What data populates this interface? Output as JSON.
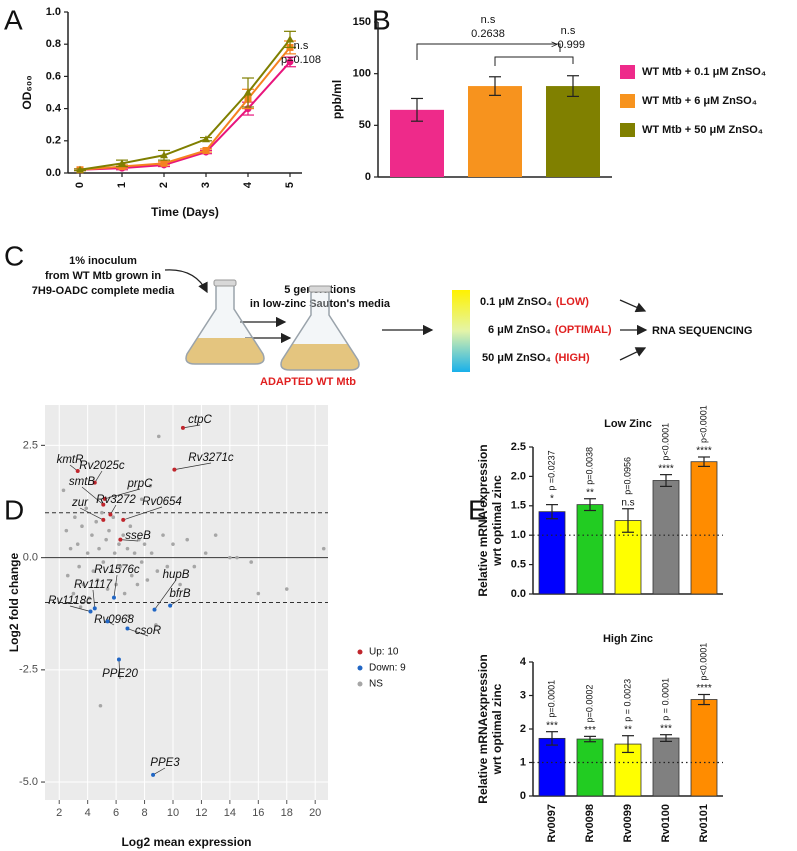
{
  "chart_data": [
    {
      "type": "line",
      "panel": "A",
      "xlabel": "Time (Days)",
      "ylabel": "OD₆₀₀",
      "categories": [
        "0",
        "1",
        "2",
        "3",
        "4",
        "5"
      ],
      "ylim": [
        0,
        1
      ],
      "yticks": [
        {
          "value": 0,
          "label": "0.0"
        },
        0.2,
        0.4,
        0.6,
        0.8,
        {
          "value": 1,
          "label": "1.0"
        }
      ],
      "series": [
        {
          "color": "#e8157c",
          "values": [
            0.02,
            0.03,
            0.05,
            0.13,
            0.4,
            0.69
          ],
          "errors": [
            0.005,
            0.01,
            0.01,
            0.01,
            0.04,
            0.03
          ]
        },
        {
          "color": "#f58220",
          "values": [
            0.02,
            0.04,
            0.06,
            0.14,
            0.46,
            0.78
          ],
          "errors": [
            0.005,
            0.01,
            0.01,
            0.01,
            0.06,
            0.04
          ]
        },
        {
          "color": "#7f7f00",
          "values": [
            0.02,
            0.06,
            0.11,
            0.21,
            0.5,
            0.83
          ],
          "errors": [
            0.005,
            0.02,
            0.03,
            0.01,
            0.09,
            0.05
          ]
        }
      ],
      "annotations": [
        "n.s",
        "p=0.108"
      ]
    },
    {
      "type": "bar",
      "panel": "B",
      "ylabel": "ppb/ml",
      "categories": [
        null
      ],
      "ylim": [
        0,
        150
      ],
      "yticks": [
        0,
        50,
        100,
        150
      ],
      "series": [
        {
          "name": "WT Mtb + 0.1 μM ZnSO₄",
          "color": "#ee2a8a",
          "values": [
            65
          ],
          "errors": [
            11
          ]
        },
        {
          "name": "WT Mtb + 6 μM ZnSO₄",
          "color": "#f7931e",
          "values": [
            88
          ],
          "errors": [
            9
          ]
        },
        {
          "name": "WT Mtb + 50 μM ZnSO₄",
          "color": "#808000",
          "values": [
            88
          ],
          "errors": [
            10
          ]
        }
      ],
      "annotations": [
        [
          "n.s",
          "0.2638"
        ],
        [
          "n.s",
          ">0.999"
        ]
      ]
    },
    {
      "type": "scatter",
      "panel": "D",
      "xlabel": "Log2 mean expression",
      "ylabel": "Log2 fold change",
      "grid": true,
      "xlim": [
        1,
        20.9
      ],
      "xticks": [
        2,
        4,
        6,
        8,
        10,
        12,
        14,
        16,
        18,
        20
      ],
      "ylim": [
        -5.4,
        3.4
      ],
      "yticks": [
        2.5,
        {
          "value": 0,
          "label": "0.0"
        },
        -2.5,
        {
          "value": -5,
          "label": "-5.0"
        }
      ],
      "hlines": [
        {
          "value": 1,
          "style": "dashed"
        },
        {
          "value": 0,
          "style": "solid"
        },
        {
          "value": -1,
          "style": "dashed"
        }
      ],
      "series": [
        {
          "name": "NS",
          "color": "#a6a6a6",
          "x": [
            2.3,
            2.5,
            2.6,
            2.8,
            3.0,
            3.1,
            3.3,
            3.4,
            3.6,
            3.7,
            3.9,
            4.0,
            4.1,
            4.3,
            4.4,
            4.6,
            4.7,
            4.8,
            4.9,
            5.0,
            5.1,
            5.3,
            5.4,
            5.5,
            5.7,
            5.8,
            5.9,
            6.0,
            6.2,
            6.3,
            6.5,
            6.6,
            6.8,
            7.0,
            7.1,
            7.3,
            7.5,
            7.6,
            7.8,
            8.0,
            8.2,
            8.4,
            8.5,
            8.9,
            9.0,
            9.3,
            9.6,
            10.0,
            10.5,
            11.0,
            11.5,
            12.3,
            13.0,
            14.0,
            14.5,
            15.5,
            16.0,
            18.0,
            20.6,
            8.8,
            7.8,
            6.9,
            3.5
          ],
          "values": [
            1.5,
            0.6,
            -0.4,
            0.2,
            -0.8,
            0.9,
            0.3,
            -0.2,
            0.7,
            -0.6,
            1.1,
            0.1,
            -0.9,
            0.5,
            -0.3,
            0.8,
            -0.5,
            0.2,
            -3.3,
            1.0,
            -0.1,
            0.4,
            -0.7,
            0.6,
            -0.3,
            0.9,
            0.1,
            -0.6,
            0.3,
            -0.2,
            0.5,
            -0.8,
            0.2,
            0.7,
            -0.4,
            0.1,
            -0.6,
            0.4,
            -0.1,
            0.3,
            -0.5,
            1.6,
            0.1,
            -0.3,
            2.7,
            0.5,
            -0.2,
            0.3,
            -0.6,
            0.4,
            -0.2,
            0.1,
            0.5,
            0.0,
            0.0,
            -0.1,
            -0.8,
            -0.7,
            0.2,
            -1.5,
            1.3,
            -1.3,
            -1.1
          ]
        },
        {
          "name": "Up: 10",
          "color": "#c0262d",
          "labels": [
            "ctpC",
            "kmtR",
            "Rv3271c",
            "Rv2025c",
            "prpC",
            "smtB",
            "zur",
            "Rv3272",
            "Rv0654",
            "sseB"
          ],
          "x": [
            10.7,
            3.3,
            10.1,
            4.5,
            5.2,
            5.1,
            5.1,
            5.6,
            6.5,
            6.3
          ],
          "values": [
            2.89,
            1.93,
            1.96,
            1.67,
            1.31,
            1.18,
            0.84,
            0.96,
            0.84,
            0.4
          ]
        },
        {
          "name": "Down: 9",
          "color": "#2166c4",
          "labels": [
            "Rv1576c",
            "hupB",
            "bfrB",
            "Rv1117",
            "Rv1118c",
            "Rv0968",
            "csoR",
            "PPE20",
            "PPE3"
          ],
          "x": [
            5.85,
            8.7,
            9.8,
            4.5,
            4.2,
            5.4,
            6.8,
            6.2,
            8.6
          ],
          "values": [
            -0.89,
            -1.16,
            -1.07,
            -1.13,
            -1.2,
            -1.42,
            -1.58,
            -2.27,
            -4.84
          ]
        }
      ]
    },
    {
      "type": "bar",
      "panel": "E",
      "title": "Low Zinc",
      "ylabel": [
        "Relative mRNA expression",
        "wrt optimal zinc"
      ],
      "ylim": [
        0,
        2.5
      ],
      "yticks": [
        {
          "value": 0,
          "label": "0.0"
        },
        0.5,
        {
          "value": 1,
          "label": "1.0"
        },
        1.5,
        {
          "value": 2,
          "label": "2.0"
        },
        2.5
      ],
      "hline": 1,
      "colors": [
        "#0000ff",
        "#22cc22",
        "#ffff00",
        "#808080",
        "#ff8c00"
      ],
      "values": [
        1.4,
        1.52,
        1.25,
        1.93,
        2.25
      ],
      "errors": [
        0.12,
        0.1,
        0.2,
        0.1,
        0.08
      ],
      "annotations": [
        {
          "stars": "*",
          "p": "p =0.0237"
        },
        {
          "stars": "**",
          "p": "p=0.0038"
        },
        {
          "stars": "n.s",
          "p": "p=0.0956"
        },
        {
          "stars": "****",
          "p": "p<0.0001"
        },
        {
          "stars": "****",
          "p": "p<0.0001"
        }
      ]
    },
    {
      "type": "bar",
      "title": "High Zinc",
      "ylabel": [
        "Relative mRNAexpression",
        "wrt optimal zinc"
      ],
      "categories": [
        "Rv0097",
        "Rv0098",
        "Rv0099",
        "Rv0100",
        "Rv0101"
      ],
      "ylim": [
        0,
        4
      ],
      "yticks": [
        0,
        1,
        2,
        3,
        4
      ],
      "hline": 1,
      "colors": [
        "#0000ff",
        "#22cc22",
        "#ffff00",
        "#808080",
        "#ff8c00"
      ],
      "values": [
        1.72,
        1.7,
        1.55,
        1.73,
        2.88
      ],
      "errors": [
        0.2,
        0.08,
        0.25,
        0.1,
        0.15
      ],
      "annotations": [
        {
          "stars": "***",
          "p": "p=0.0001"
        },
        {
          "stars": "***",
          "p": "p=0.0002"
        },
        {
          "stars": "**",
          "p": "p = 0.0023"
        },
        {
          "stars": "***",
          "p": "p = 0.0001"
        },
        {
          "stars": "****",
          "p": "p<0.0001"
        }
      ]
    }
  ],
  "diagram": {
    "panel": "C",
    "inoculum": [
      "1% inoculum",
      "from WT Mtb grown in",
      "7H9-OADC complete media"
    ],
    "passage": [
      "5 generations",
      "in low-zinc Sauton's media"
    ],
    "adapted": "ADAPTED WT Mtb",
    "conditions": [
      {
        "dose": "0.1 μM ZnSO₄",
        "level": "(LOW)"
      },
      {
        "dose": "6 μM ZnSO₄",
        "level": "(OPTIMAL)"
      },
      {
        "dose": "50 μM ZnSO₄",
        "level": "(HIGH)"
      }
    ],
    "output": "RNA SEQUENCING"
  }
}
